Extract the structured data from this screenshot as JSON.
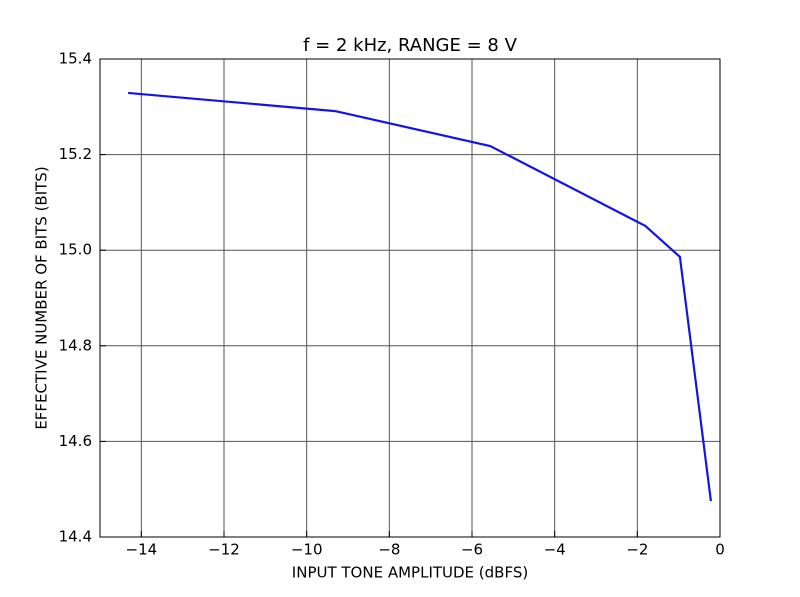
{
  "chart_data": {
    "type": "line",
    "title": "f = 2 kHz, RANGE = 8 V",
    "x_label": "INPUT TONE AMPLITUDE (dBFS)",
    "y_label": "EFFECTIVE NUMBER OF BITS (BITS)",
    "x": [
      -14.32,
      -9.31,
      -5.56,
      -1.81,
      -0.97,
      -0.22
    ],
    "series": [
      {
        "name": "ENOB",
        "color": "#1515e0",
        "values": [
          15.329,
          15.291,
          15.218,
          15.051,
          14.986,
          14.475
        ]
      }
    ],
    "xlim": [
      -15,
      0
    ],
    "xticks": [
      {
        "value": -14,
        "label": "−14"
      },
      {
        "value": -12,
        "label": "−12"
      },
      {
        "value": -10,
        "label": "−10"
      },
      {
        "value": -8,
        "label": "−8"
      },
      {
        "value": -6,
        "label": "−6"
      },
      {
        "value": -4,
        "label": "−4"
      },
      {
        "value": -2,
        "label": "−2"
      },
      0
    ],
    "ylim": [
      14.4,
      15.4
    ],
    "yticks": [
      14.4,
      14.6,
      14.8,
      {
        "value": 15,
        "label": "15.0"
      },
      15.2,
      15.4
    ],
    "grid": true
  }
}
